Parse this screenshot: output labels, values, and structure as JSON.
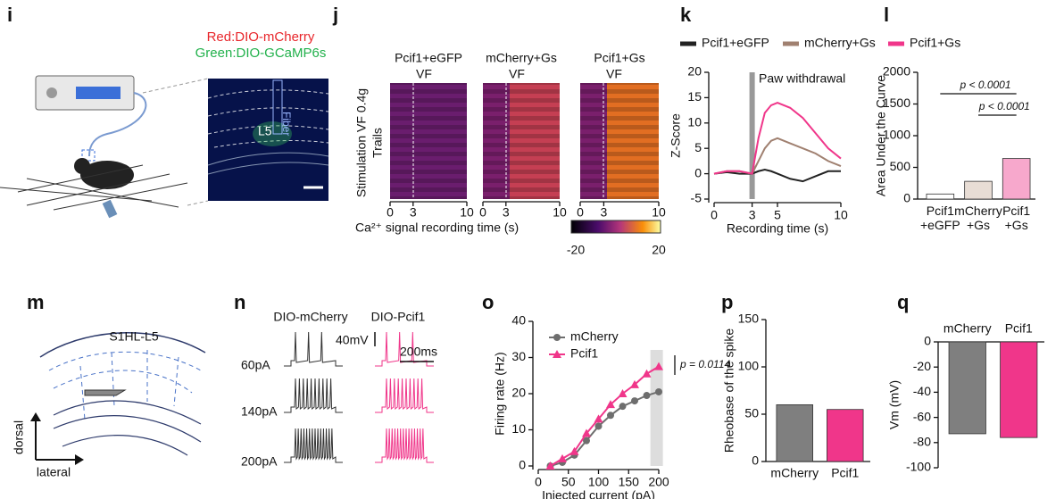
{
  "panel_labels": [
    "i",
    "j",
    "k",
    "l",
    "m",
    "n",
    "o",
    "p",
    "q"
  ],
  "panel_i": {
    "red_label": "Red:DIO-mCherry",
    "green_label": "Green:DIO-GCaMP6s",
    "region": "L5",
    "fiber": "Fiber"
  },
  "panel_j": {
    "y_label_1": "Stimulation  VF 0.4g",
    "y_label_2": "Trails",
    "titles": [
      "Pcif1+eGFP",
      "mCherry+Gs",
      "Pcif1+Gs"
    ],
    "marker": "VF",
    "xticks": [
      0,
      3,
      10
    ],
    "x_label": "Ca²⁺ signal recording time (s)",
    "colorbar_ticks": [
      -20,
      20
    ]
  },
  "panel_m": {
    "region": "S1HL-L5",
    "dorsal": "dorsal",
    "lateral": "lateral"
  },
  "panel_n": {
    "columns": [
      "DIO-mCherry",
      "DIO-Pcif1"
    ],
    "currents": [
      "60pA",
      "140pA",
      "200pA"
    ],
    "scale_v": "40mV",
    "scale_t": "200ms"
  },
  "chart_data": [
    {
      "type": "line",
      "y_label": "Z-Score",
      "x_label": "Recording time (s)",
      "xlim": [
        0,
        10
      ],
      "xticks": [
        0,
        3,
        5,
        10
      ],
      "ylim": [
        -5,
        20
      ],
      "yticks": [
        -5,
        0,
        5,
        10,
        15,
        20
      ],
      "annotation": "Paw withdrawal",
      "legend": "top",
      "x": [
        0,
        1,
        2,
        3,
        3.5,
        4,
        4.5,
        5,
        6,
        7,
        8,
        9,
        10
      ],
      "series": [
        {
          "name": "Pcif1+eGFP",
          "color": "#222222",
          "values": [
            0,
            0.3,
            0,
            0,
            0.5,
            0.8,
            0.5,
            0,
            -1,
            -1.5,
            -0.5,
            0.5,
            0.5
          ]
        },
        {
          "name": "mCherry+Gs",
          "color": "#a08070",
          "values": [
            0,
            0.5,
            0.5,
            0,
            2.5,
            5,
            6.5,
            7,
            6,
            5,
            4,
            2.5,
            1.5
          ]
        },
        {
          "name": "Pcif1+Gs",
          "color": "#f0368a",
          "values": [
            0,
            0.5,
            0.5,
            0,
            7,
            12,
            13.5,
            14,
            13,
            11,
            8,
            5,
            3
          ]
        }
      ]
    },
    {
      "type": "bar",
      "y_label": "Area Under the Curve",
      "categories": [
        "Pcif1\n+eGFP",
        "mCherry\n+Gs",
        "Pcif1\n+Gs"
      ],
      "values": [
        80,
        280,
        640
      ],
      "colors": [
        "#ffffff",
        "#e8ddd5",
        "#f7a8cc"
      ],
      "ylim": [
        0,
        2000
      ],
      "yticks": [
        0,
        500,
        1000,
        1500,
        2000
      ],
      "annotations": [
        "p < 0.0001",
        "p < 0.0001"
      ]
    },
    {
      "type": "line",
      "y_label": "Firing rate (Hz)",
      "x_label": "Injected current (pA)",
      "xlim": [
        0,
        200
      ],
      "xticks": [
        0,
        50,
        100,
        150,
        200
      ],
      "ylim": [
        0,
        40
      ],
      "yticks": [
        0,
        10,
        20,
        30,
        40
      ],
      "annotation": "p = 0.0114",
      "legend": "upper left",
      "x": [
        20,
        40,
        60,
        80,
        100,
        120,
        140,
        160,
        180,
        200
      ],
      "series": [
        {
          "name": "mCherry",
          "color": "#6e6e6e",
          "marker": "circle",
          "values": [
            0,
            1,
            3,
            7,
            11,
            14,
            16.5,
            18,
            19.5,
            20.5
          ]
        },
        {
          "name": "Pcif1",
          "color": "#f0368a",
          "marker": "triangle",
          "values": [
            0,
            2,
            4,
            9,
            13,
            17,
            20,
            22.5,
            25.5,
            27.5
          ]
        }
      ]
    },
    {
      "type": "bar",
      "y_label": "Rheobase of the spike",
      "categories": [
        "mCherry",
        "Pcif1"
      ],
      "values": [
        60,
        55
      ],
      "colors": [
        "#7f7f7f",
        "#f0368a"
      ],
      "ylim": [
        0,
        150
      ],
      "yticks": [
        0,
        50,
        100,
        150
      ]
    },
    {
      "type": "bar",
      "y_label": "Vm (mV)",
      "categories": [
        "mCherry",
        "Pcif1"
      ],
      "values": [
        -73,
        -76
      ],
      "colors": [
        "#7f7f7f",
        "#f0368a"
      ],
      "ylim": [
        -100,
        0
      ],
      "yticks": [
        0,
        -20,
        -40,
        -60,
        -80,
        -100
      ]
    }
  ]
}
